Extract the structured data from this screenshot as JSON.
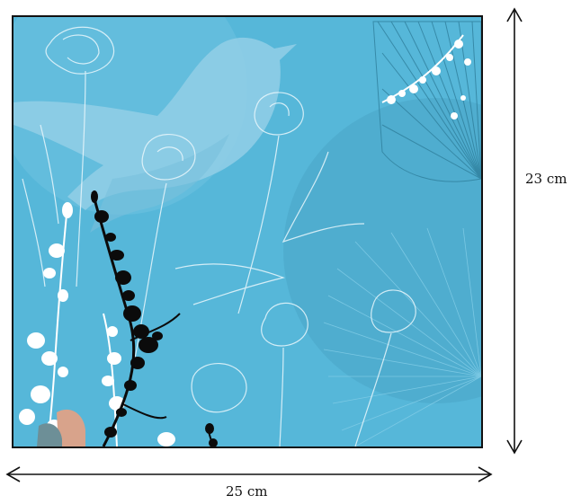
{
  "artwork": {
    "palette": {
      "sky": "#56b7d9",
      "sky_light": "#7cc8e4",
      "bird": "#8fcde6",
      "circle": "#4aa6c6",
      "umbrella": "#2f7f9c",
      "branch_dark": "#0b0b0b",
      "blossom_white": "#ffffff",
      "accent_pink": "#d8a38b",
      "accent_grey": "#6d8f97"
    },
    "motifs": [
      "bird-silhouette",
      "umbrella-outline",
      "white-flower-sketches",
      "black-blossom-branch",
      "white-blossom-branch"
    ]
  },
  "dimensions": {
    "width_label": "25 cm",
    "height_label": "23 cm"
  }
}
